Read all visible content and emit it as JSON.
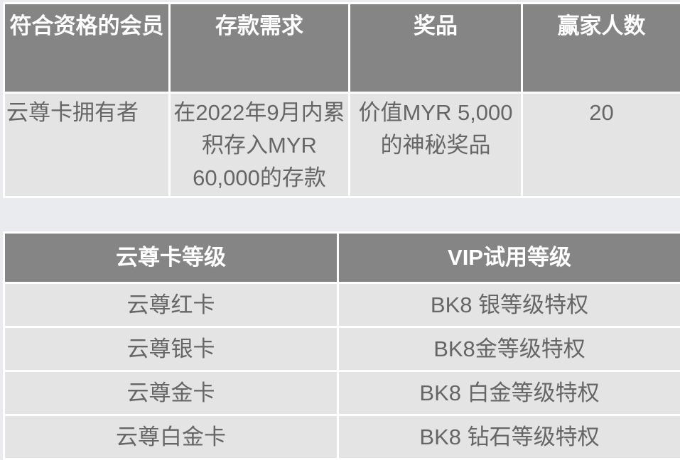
{
  "table1": {
    "headers": [
      "符合资格的会员",
      "存款需求",
      "奖品",
      "赢家人数"
    ],
    "rows": [
      [
        "云尊卡拥有者",
        "在2022年9月内累积存入MYR 60,000的存款",
        "价值MYR 5,000的神秘奖品",
        "20"
      ]
    ]
  },
  "table2": {
    "headers": [
      "云尊卡等级",
      "VIP试用等级"
    ],
    "rows": [
      [
        "云尊红卡",
        "BK8 银等级特权"
      ],
      [
        "云尊银卡",
        "BK8金等级特权"
      ],
      [
        "云尊金卡",
        "BK8 白金等级特权"
      ],
      [
        "云尊白金卡",
        "BK8 钻石等级特权"
      ]
    ]
  },
  "colors": {
    "header_bg": "#858585",
    "cell_bg": "#e4e4e4",
    "page_bg": "#e9ebef",
    "text": "#666666"
  }
}
